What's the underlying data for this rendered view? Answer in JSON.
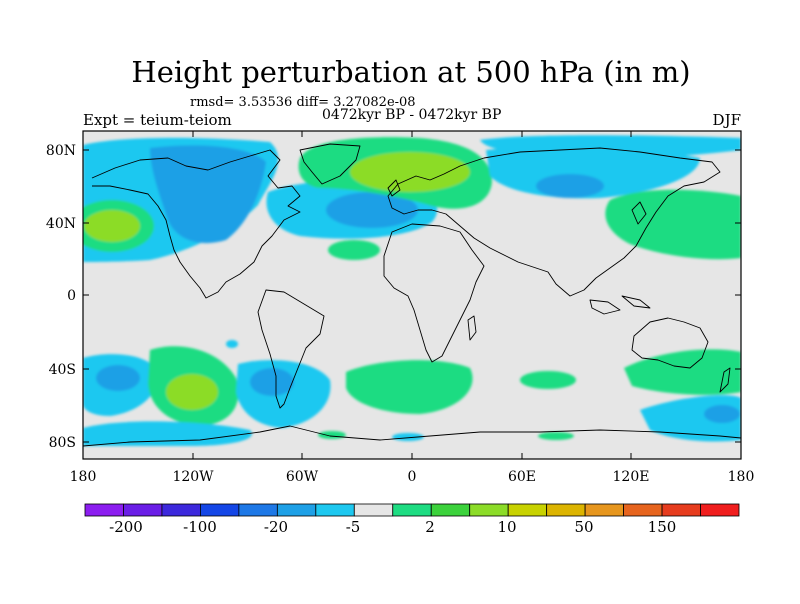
{
  "title": "Height perturbation at 500 hPa (in m)",
  "stats_line": "rmsd= 3.53536  diff= 3.27082e-08",
  "period_line": "0472kyr BP - 0472kyr BP",
  "expt_label": "Expt = teium-teiom",
  "season": "DJF",
  "map": {
    "lat_ticks": [
      "80N",
      "40N",
      "0",
      "40S",
      "80S"
    ],
    "lon_ticks": [
      "180",
      "120W",
      "60W",
      "0",
      "60E",
      "120E",
      "180"
    ]
  },
  "colorbar": {
    "labels": [
      "-200",
      "-100",
      "-20",
      "-5",
      "2",
      "10",
      "50",
      "150"
    ],
    "colors": [
      "#8c1ef0",
      "#6a1ee6",
      "#3c28dc",
      "#1446e6",
      "#1e78e6",
      "#1ea0e6",
      "#1ec8f0",
      "#e6e6e6",
      "#1edc82",
      "#3cd23c",
      "#8cdc28",
      "#c8d200",
      "#dcb400",
      "#e6961e",
      "#e6641e",
      "#e63c1e",
      "#f01e1e"
    ]
  },
  "palette": {
    "land_line": "#000000",
    "neutral": "#e6e6e6"
  }
}
